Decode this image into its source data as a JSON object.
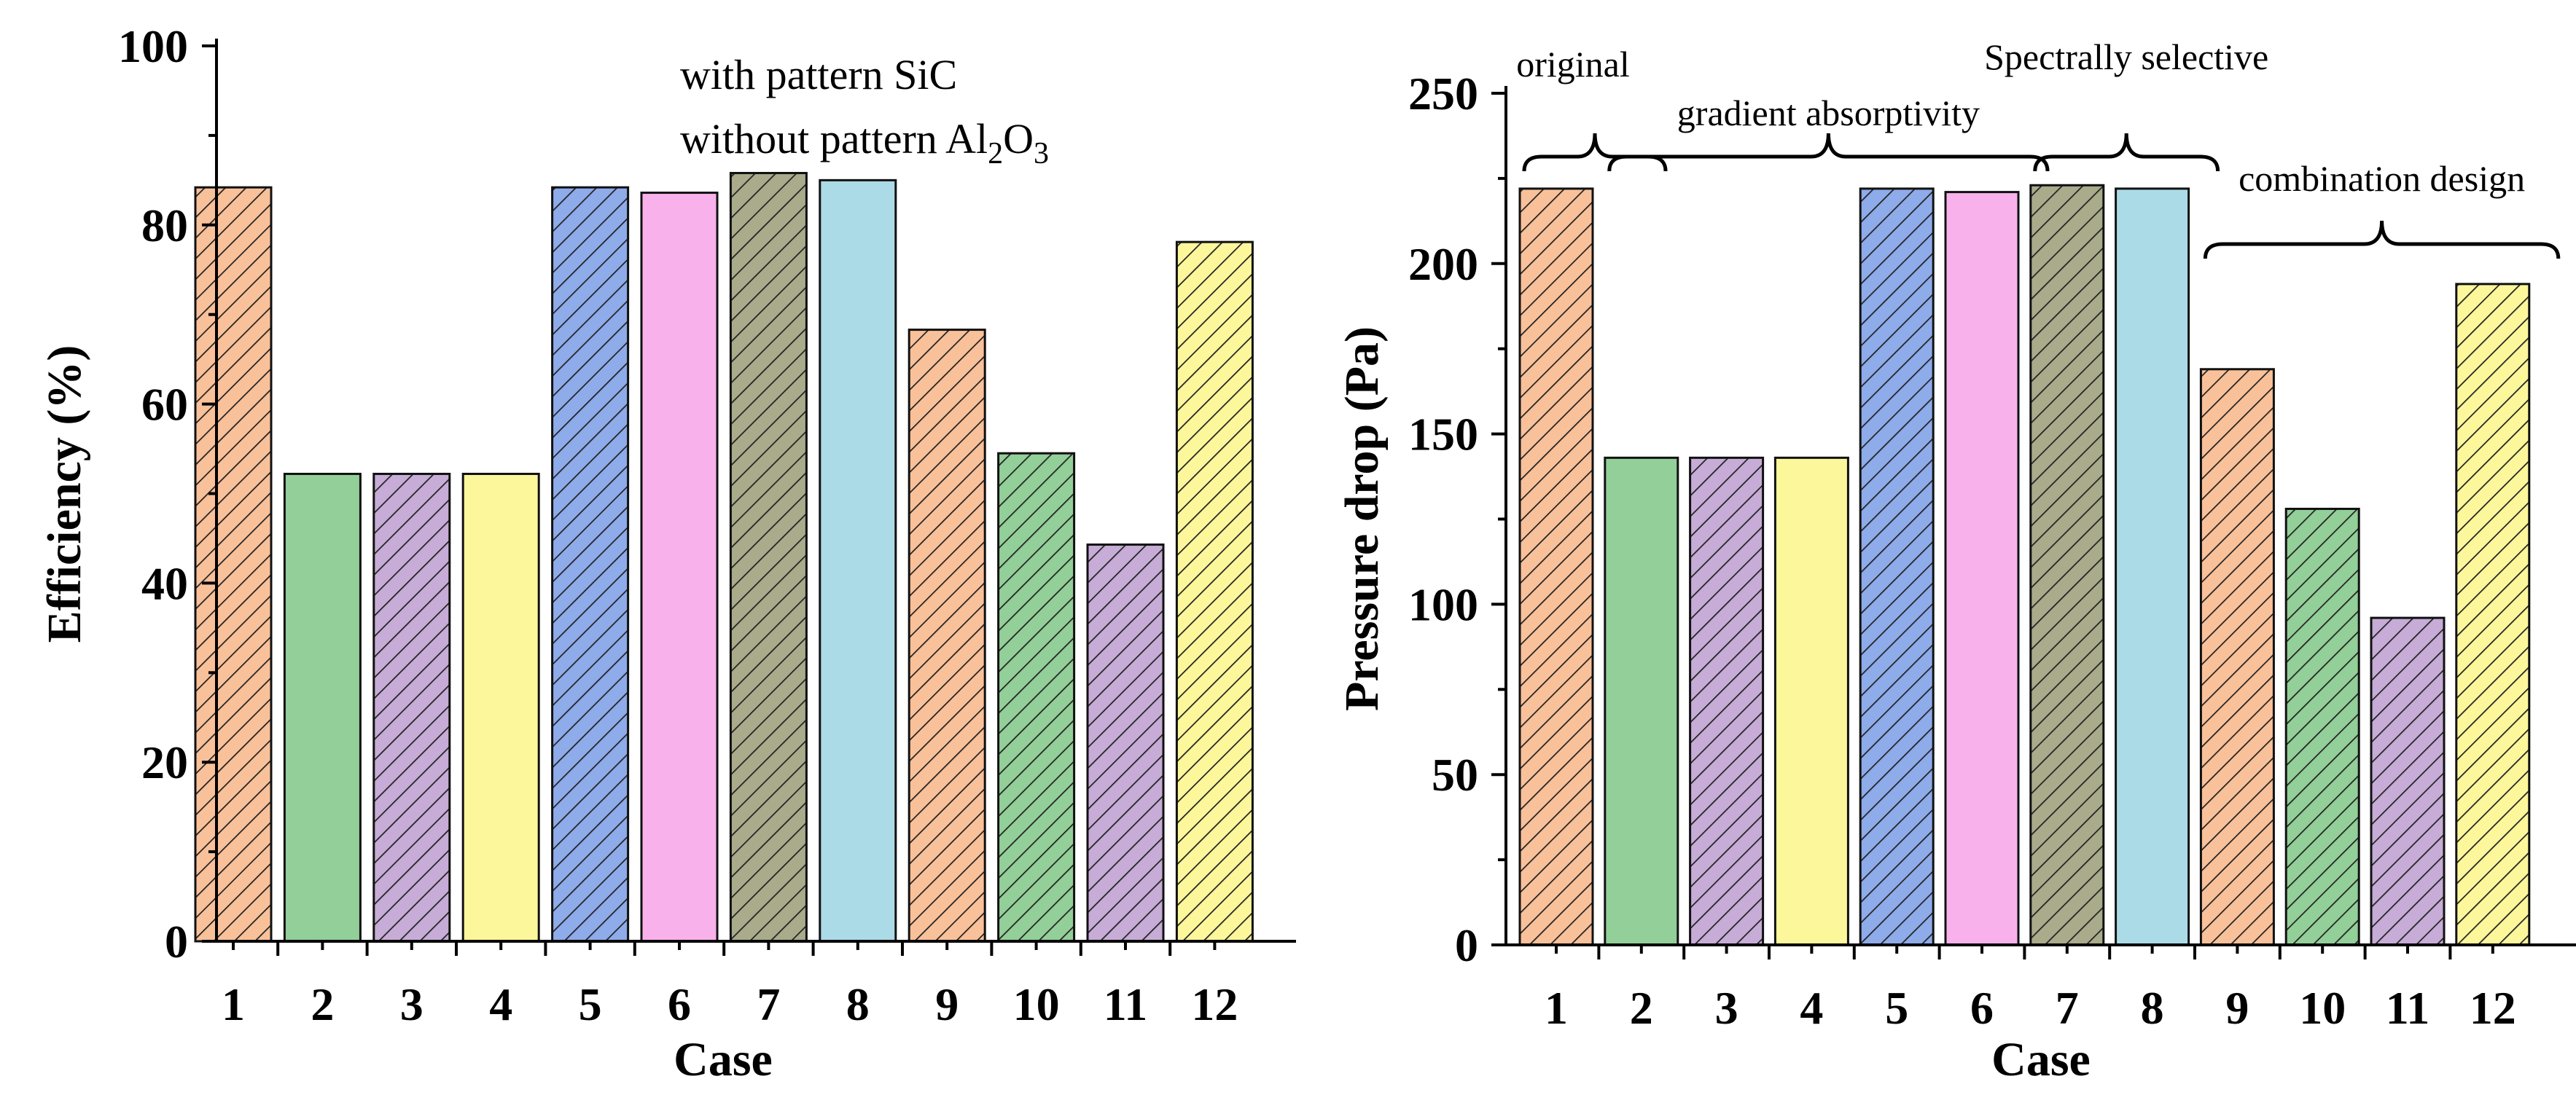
{
  "chart_data": [
    {
      "type": "bar",
      "title": "",
      "xlabel": "Case",
      "ylabel": "Efficiency (%)",
      "ylim": [
        0,
        100
      ],
      "yticks": [
        0,
        20,
        40,
        60,
        80,
        100
      ],
      "categories": [
        "1",
        "2",
        "3",
        "4",
        "5",
        "6",
        "7",
        "8",
        "9",
        "10",
        "11",
        "12"
      ],
      "values": [
        84.2,
        52.2,
        52.2,
        52.2,
        84.2,
        83.6,
        85.8,
        85.0,
        68.3,
        54.5,
        44.3,
        78.1
      ],
      "legend": {
        "line1": "with pattern SiC",
        "line2_prefix": "without pattern Al",
        "line2_sub1": "2",
        "line2_mid": "O",
        "line2_sub2": "3"
      }
    },
    {
      "type": "bar",
      "title": "",
      "xlabel": "Case",
      "ylabel": "Pressure drop (Pa)",
      "ylim": [
        0,
        250
      ],
      "yticks": [
        0,
        50,
        100,
        150,
        200,
        250
      ],
      "categories": [
        "1",
        "2",
        "3",
        "4",
        "5",
        "6",
        "7",
        "8",
        "9",
        "10",
        "11",
        "12"
      ],
      "values": [
        222,
        143,
        143,
        143,
        222,
        221,
        223,
        222,
        169,
        128,
        96,
        194
      ],
      "annotations": [
        {
          "text": "original",
          "from": 1,
          "to": 1
        },
        {
          "text": "gradient absorptivity",
          "from": 2,
          "to": 6
        },
        {
          "text": "Spectrally selective",
          "from": 7,
          "to": 8
        },
        {
          "text": "combination design",
          "from": 9,
          "to": 12
        }
      ]
    }
  ],
  "bar_styles": [
    {
      "fill": "#f9c19a",
      "hatched": true
    },
    {
      "fill": "#93cf98",
      "hatched": false
    },
    {
      "fill": "#c6acd6",
      "hatched": true
    },
    {
      "fill": "#fdf79c",
      "hatched": false
    },
    {
      "fill": "#8eabea",
      "hatched": true
    },
    {
      "fill": "#f9b1ec",
      "hatched": false
    },
    {
      "fill": "#a9ab8b",
      "hatched": true
    },
    {
      "fill": "#acdbe8",
      "hatched": false
    },
    {
      "fill": "#f9c19a",
      "hatched": true
    },
    {
      "fill": "#93cf98",
      "hatched": true
    },
    {
      "fill": "#c6acd6",
      "hatched": true
    },
    {
      "fill": "#fdf79c",
      "hatched": true
    }
  ]
}
